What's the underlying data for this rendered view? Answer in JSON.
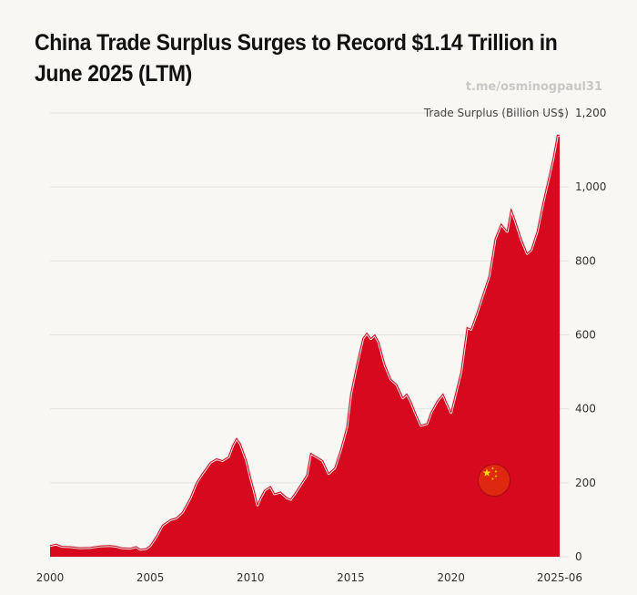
{
  "page": {
    "title": "China Trade Surplus Surges to Record $1.14 Trillion in June 2025 (LTM)",
    "watermark": "t.me/osminogpaul31"
  },
  "chart_data": {
    "type": "area",
    "title": "China Trade Surplus Surges to Record $1.14 Trillion in June 2025 (LTM)",
    "ylabel": "Trade Surplus (Billion US$)",
    "xlabel": "",
    "ylim": [
      0,
      1200
    ],
    "xlim": [
      2000.0,
      2025.42
    ],
    "y_ticks": [
      0,
      200,
      400,
      600,
      800,
      1000,
      1200
    ],
    "y_tick_labels": [
      "0",
      "200",
      "400",
      "600",
      "800",
      "1,000",
      "1,200"
    ],
    "x_ticks": [
      2000,
      2005,
      2010,
      2015,
      2020,
      2025.42
    ],
    "x_tick_labels": [
      "2000",
      "2005",
      "2010",
      "2015",
      "2020",
      "2025-06"
    ],
    "grid": true,
    "y_axis_position": "right",
    "colors": {
      "fill": "#d7091f",
      "outline": "#e4e4e4",
      "grid": "#e3e3e0",
      "flag": "#de2910",
      "star": "#ffde00"
    },
    "series": [
      {
        "points": [
          [
            2000.0,
            30
          ],
          [
            2000.3,
            34
          ],
          [
            2000.6,
            28
          ],
          [
            2001.0,
            27
          ],
          [
            2001.5,
            24
          ],
          [
            2002.0,
            25
          ],
          [
            2002.5,
            29
          ],
          [
            2003.0,
            30
          ],
          [
            2003.3,
            28
          ],
          [
            2003.6,
            24
          ],
          [
            2004.0,
            23
          ],
          [
            2004.3,
            27
          ],
          [
            2004.5,
            20
          ],
          [
            2004.8,
            22
          ],
          [
            2005.0,
            30
          ],
          [
            2005.3,
            55
          ],
          [
            2005.6,
            85
          ],
          [
            2006.0,
            100
          ],
          [
            2006.3,
            105
          ],
          [
            2006.6,
            120
          ],
          [
            2007.0,
            160
          ],
          [
            2007.3,
            200
          ],
          [
            2007.6,
            225
          ],
          [
            2008.0,
            255
          ],
          [
            2008.3,
            265
          ],
          [
            2008.6,
            260
          ],
          [
            2008.9,
            270
          ],
          [
            2009.1,
            300
          ],
          [
            2009.3,
            320
          ],
          [
            2009.5,
            305
          ],
          [
            2009.8,
            260
          ],
          [
            2010.0,
            215
          ],
          [
            2010.2,
            175
          ],
          [
            2010.35,
            140
          ],
          [
            2010.5,
            160
          ],
          [
            2010.7,
            180
          ],
          [
            2011.0,
            190
          ],
          [
            2011.2,
            170
          ],
          [
            2011.5,
            175
          ],
          [
            2011.8,
            160
          ],
          [
            2012.0,
            155
          ],
          [
            2012.2,
            170
          ],
          [
            2012.5,
            195
          ],
          [
            2012.8,
            220
          ],
          [
            2013.0,
            280
          ],
          [
            2013.3,
            270
          ],
          [
            2013.6,
            260
          ],
          [
            2013.9,
            225
          ],
          [
            2014.2,
            240
          ],
          [
            2014.5,
            290
          ],
          [
            2014.8,
            350
          ],
          [
            2015.0,
            440
          ],
          [
            2015.3,
            520
          ],
          [
            2015.6,
            590
          ],
          [
            2015.8,
            605
          ],
          [
            2016.0,
            590
          ],
          [
            2016.2,
            600
          ],
          [
            2016.4,
            580
          ],
          [
            2016.7,
            520
          ],
          [
            2017.0,
            480
          ],
          [
            2017.3,
            465
          ],
          [
            2017.6,
            430
          ],
          [
            2017.8,
            440
          ],
          [
            2018.0,
            420
          ],
          [
            2018.3,
            380
          ],
          [
            2018.5,
            355
          ],
          [
            2018.8,
            360
          ],
          [
            2019.0,
            390
          ],
          [
            2019.3,
            420
          ],
          [
            2019.6,
            440
          ],
          [
            2019.8,
            415
          ],
          [
            2020.0,
            390
          ],
          [
            2020.2,
            435
          ],
          [
            2020.5,
            500
          ],
          [
            2020.8,
            620
          ],
          [
            2021.0,
            615
          ],
          [
            2021.3,
            660
          ],
          [
            2021.6,
            710
          ],
          [
            2021.9,
            760
          ],
          [
            2022.2,
            860
          ],
          [
            2022.5,
            900
          ],
          [
            2022.8,
            880
          ],
          [
            2023.0,
            940
          ],
          [
            2023.2,
            910
          ],
          [
            2023.5,
            860
          ],
          [
            2023.8,
            820
          ],
          [
            2024.0,
            830
          ],
          [
            2024.3,
            880
          ],
          [
            2024.6,
            960
          ],
          [
            2024.9,
            1030
          ],
          [
            2025.1,
            1080
          ],
          [
            2025.3,
            1140
          ],
          [
            2025.42,
            1140
          ]
        ]
      }
    ]
  }
}
